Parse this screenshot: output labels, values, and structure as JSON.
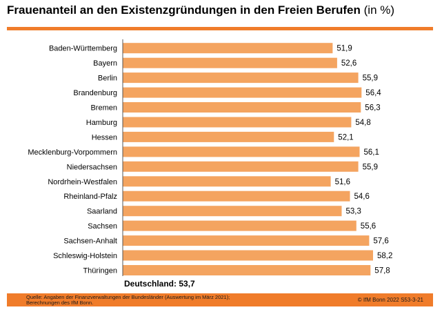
{
  "chart_data": {
    "type": "bar",
    "orientation": "horizontal",
    "title": "Frauenanteil an den Existenzgründungen in den Freien Berufen",
    "unit": "(in %)",
    "categories": [
      "Baden-Württemberg",
      "Bayern",
      "Berlin",
      "Brandenburg",
      "Bremen",
      "Hamburg",
      "Hessen",
      "Mecklenburg-Vorpommern",
      "Niedersachsen",
      "Nordrhein-Westfalen",
      "Rheinland-Pfalz",
      "Saarland",
      "Sachsen",
      "Sachsen-Anhalt",
      "Schleswig-Holstein",
      "Thüringen"
    ],
    "values": [
      51.9,
      52.6,
      55.9,
      56.4,
      56.3,
      54.8,
      52.1,
      56.1,
      55.9,
      51.6,
      54.6,
      53.3,
      55.6,
      57.6,
      58.2,
      57.8
    ],
    "value_labels": [
      "51,9",
      "52,6",
      "55,9",
      "56,4",
      "56,3",
      "54,8",
      "52,1",
      "56,1",
      "55,9",
      "51,6",
      "54,6",
      "53,3",
      "55,6",
      "57,6",
      "58,2",
      "57,8"
    ],
    "bar_color": "#f4a460",
    "grid": false,
    "legend": "none"
  },
  "total_label": "Deutschland: 53,7",
  "source_lines": [
    "Quelle: Angaben der Finanzverwaltungen der  Bundesländer (Auswertung im März 2021);",
    "Berechnungen des IfM Bonn."
  ],
  "copyright": "© IfM Bonn 2022  S53-3-21",
  "colors": {
    "accent": "#f07c2a",
    "bar": "#f4a460"
  }
}
